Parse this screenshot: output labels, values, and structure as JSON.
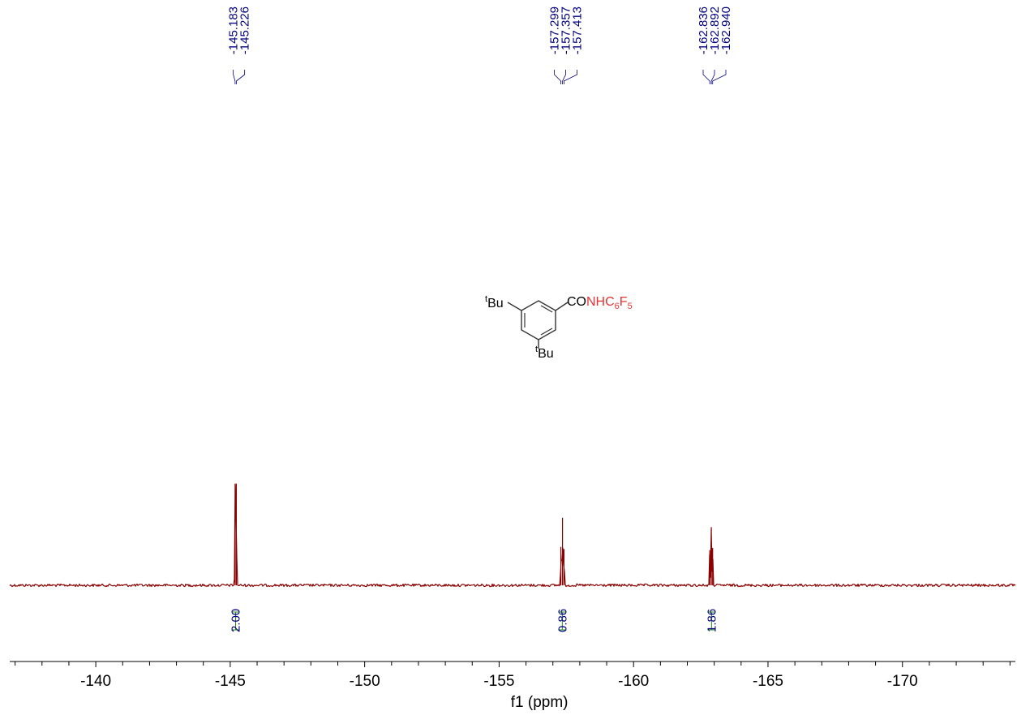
{
  "chart_data": {
    "type": "line",
    "xlabel": "f1 (ppm)",
    "xlim": [
      -136.8,
      -174.2
    ],
    "x_reversed": true,
    "ticks": [
      -140,
      -145,
      -150,
      -155,
      -160,
      -165,
      -170
    ],
    "tick_labels": [
      "-140",
      "-145",
      "-150",
      "-155",
      "-160",
      "-165",
      "-170"
    ],
    "peak_groups": [
      {
        "labels": [
          "-145.183",
          "-145.226"
        ],
        "values": [
          -145.183,
          -145.226
        ]
      },
      {
        "labels": [
          "-157.299",
          "-157.357",
          "-157.413"
        ],
        "values": [
          -157.299,
          -157.357,
          -157.413
        ]
      },
      {
        "labels": [
          "-162.836",
          "-162.892",
          "-162.940"
        ],
        "values": [
          -162.836,
          -162.892,
          -162.94
        ]
      }
    ],
    "peaks": [
      {
        "ppm": -145.183,
        "height": 0.98
      },
      {
        "ppm": -145.226,
        "height": 0.98
      },
      {
        "ppm": -157.299,
        "height": 0.37
      },
      {
        "ppm": -157.357,
        "height": 0.65
      },
      {
        "ppm": -157.413,
        "height": 0.35
      },
      {
        "ppm": -162.836,
        "height": 0.34
      },
      {
        "ppm": -162.892,
        "height": 0.56
      },
      {
        "ppm": -162.94,
        "height": 0.36
      }
    ],
    "integrals": [
      {
        "label": "2.00",
        "from": -145.05,
        "to": -145.35
      },
      {
        "label": "0.86",
        "from": -157.15,
        "to": -157.55
      },
      {
        "label": "1.86",
        "from": -162.7,
        "to": -163.1
      }
    ],
    "grid": false
  },
  "molecule": {
    "substituent_top": "Bu",
    "substituent_bottom": "Bu",
    "superscript": "t",
    "amide_black": "CO",
    "amide_red_1": "NHC",
    "amide_sub_6": "6",
    "amide_red_2": "F",
    "amide_sub_5": "5"
  },
  "colors": {
    "spectrum": "#8b0000",
    "peak_labels": "#000080",
    "integral_bracket": "#228b22",
    "integral_text": "#000080",
    "highlight": "#e53333"
  }
}
